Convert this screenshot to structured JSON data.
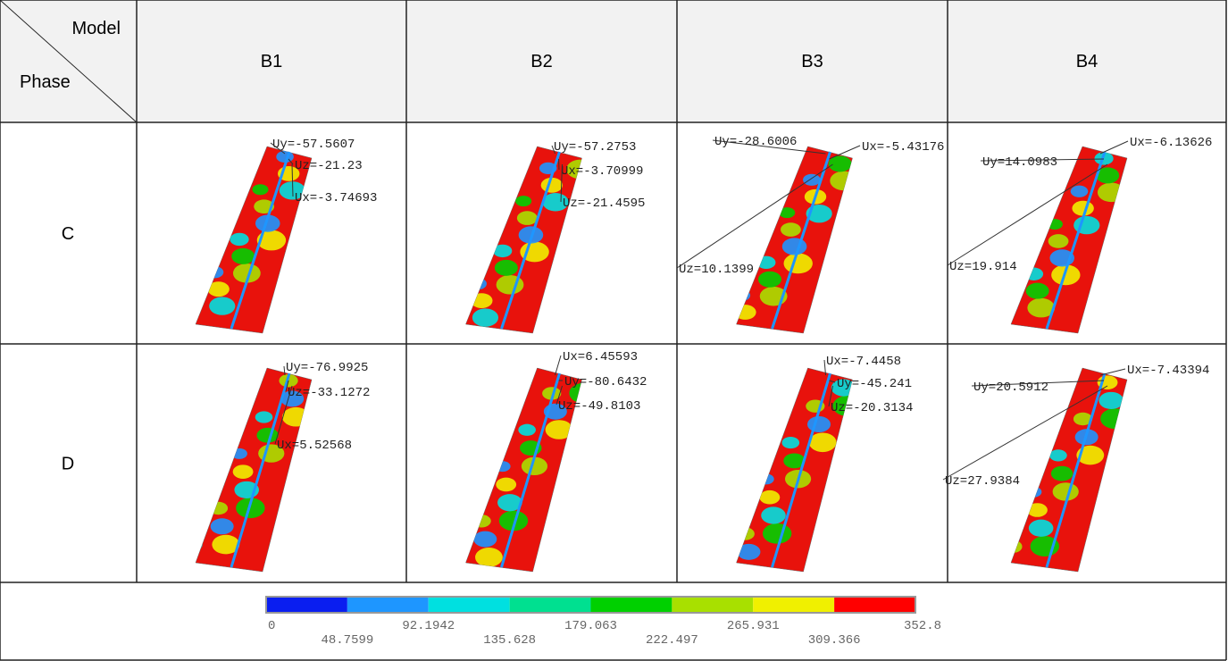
{
  "header": {
    "corner_top": "Model",
    "corner_bottom": "Phase",
    "columns": [
      "B1",
      "B2",
      "B3",
      "B4"
    ]
  },
  "rows": [
    {
      "label": "C",
      "cells": [
        [
          "Uy=-57.5607",
          "Uz=-21.23",
          "Ux=-3.74693"
        ],
        [
          "Uy=-57.2753",
          "Ux=-3.70999",
          "Uz=-21.4595"
        ],
        [
          "Uy=-28.6006",
          "Ux=-5.43176",
          "Uz=10.1399"
        ],
        [
          "Ux=-6.13626",
          "Uy=14.0983",
          "Uz=19.914"
        ]
      ]
    },
    {
      "label": "D",
      "cells": [
        [
          "Uy=-76.9925",
          "Uz=-33.1272",
          "Ux=5.52568"
        ],
        [
          "Ux=6.45593",
          "Uy=-80.6432",
          "Uz=-49.8103"
        ],
        [
          "Ux=-7.4458",
          "Uy=-45.241",
          "Uz=-20.3134"
        ],
        [
          "Ux=-7.43394",
          "Uy=20.5912",
          "Uz=27.9384"
        ]
      ]
    }
  ],
  "legend": {
    "ticks": [
      "0",
      "48.7599",
      "92.1942",
      "135.628",
      "179.063",
      "222.497",
      "265.931",
      "309.366",
      "352.8"
    ]
  }
}
